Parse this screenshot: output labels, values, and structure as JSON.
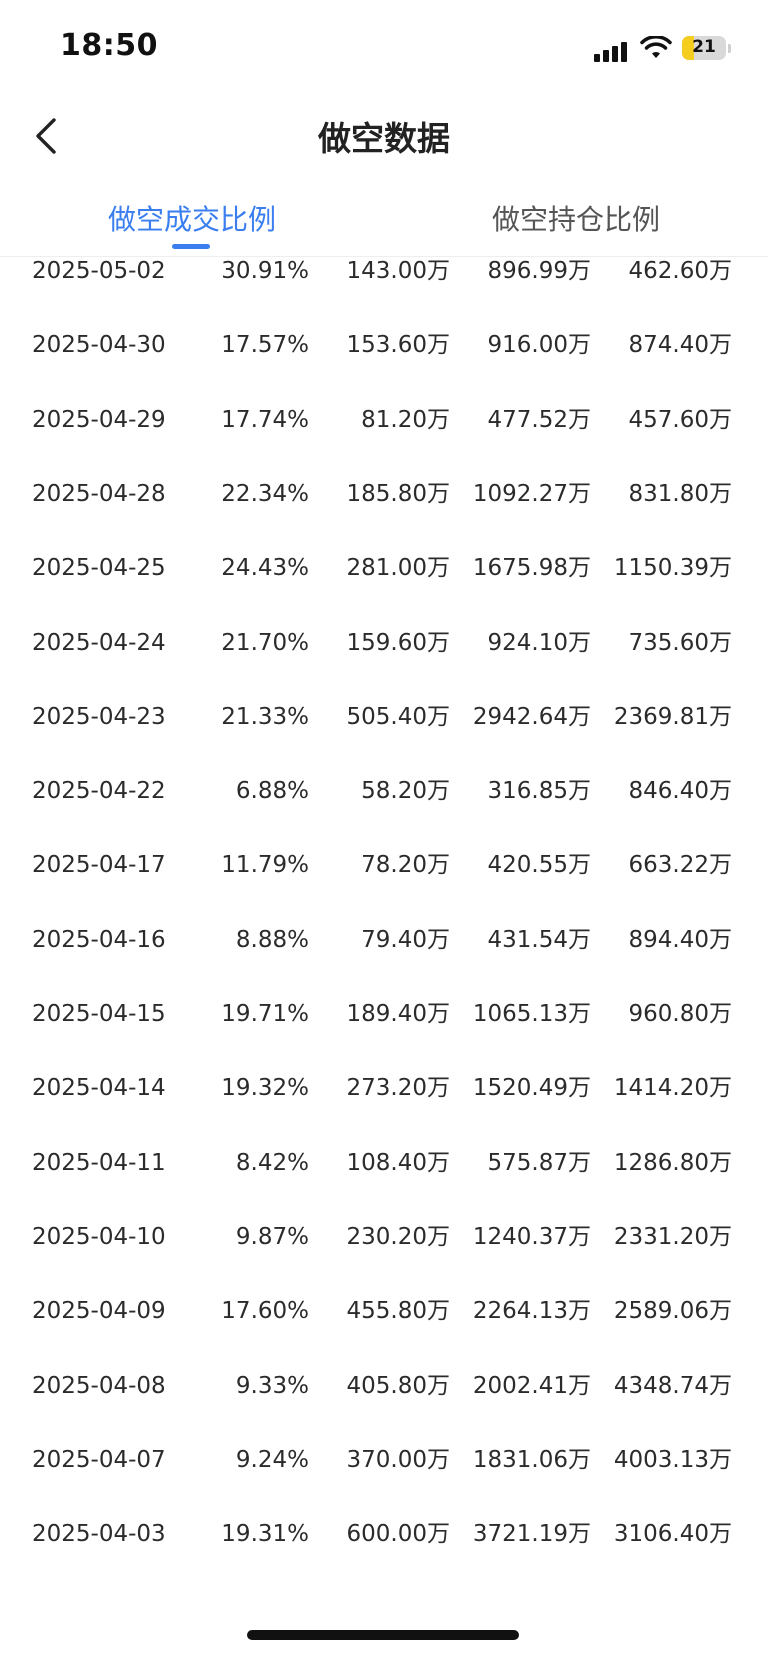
{
  "status_bar": {
    "time": "18:50",
    "battery": "21"
  },
  "nav": {
    "title": "做空数据"
  },
  "tabs": [
    {
      "label": "做空成交比例",
      "active": true
    },
    {
      "label": "做空持仓比例",
      "active": false
    }
  ],
  "colors": {
    "accent": "#3a7ef0",
    "text": "#2b2b2b",
    "battery": "#f5cd1e"
  },
  "rows": [
    {
      "date": "2025-05-02",
      "ratio": "30.91%",
      "v1": "143.00万",
      "v2": "896.99万",
      "v3": "462.60万"
    },
    {
      "date": "2025-04-30",
      "ratio": "17.57%",
      "v1": "153.60万",
      "v2": "916.00万",
      "v3": "874.40万"
    },
    {
      "date": "2025-04-29",
      "ratio": "17.74%",
      "v1": "81.20万",
      "v2": "477.52万",
      "v3": "457.60万"
    },
    {
      "date": "2025-04-28",
      "ratio": "22.34%",
      "v1": "185.80万",
      "v2": "1092.27万",
      "v3": "831.80万"
    },
    {
      "date": "2025-04-25",
      "ratio": "24.43%",
      "v1": "281.00万",
      "v2": "1675.98万",
      "v3": "1150.39万"
    },
    {
      "date": "2025-04-24",
      "ratio": "21.70%",
      "v1": "159.60万",
      "v2": "924.10万",
      "v3": "735.60万"
    },
    {
      "date": "2025-04-23",
      "ratio": "21.33%",
      "v1": "505.40万",
      "v2": "2942.64万",
      "v3": "2369.81万"
    },
    {
      "date": "2025-04-22",
      "ratio": "6.88%",
      "v1": "58.20万",
      "v2": "316.85万",
      "v3": "846.40万"
    },
    {
      "date": "2025-04-17",
      "ratio": "11.79%",
      "v1": "78.20万",
      "v2": "420.55万",
      "v3": "663.22万"
    },
    {
      "date": "2025-04-16",
      "ratio": "8.88%",
      "v1": "79.40万",
      "v2": "431.54万",
      "v3": "894.40万"
    },
    {
      "date": "2025-04-15",
      "ratio": "19.71%",
      "v1": "189.40万",
      "v2": "1065.13万",
      "v3": "960.80万"
    },
    {
      "date": "2025-04-14",
      "ratio": "19.32%",
      "v1": "273.20万",
      "v2": "1520.49万",
      "v3": "1414.20万"
    },
    {
      "date": "2025-04-11",
      "ratio": "8.42%",
      "v1": "108.40万",
      "v2": "575.87万",
      "v3": "1286.80万"
    },
    {
      "date": "2025-04-10",
      "ratio": "9.87%",
      "v1": "230.20万",
      "v2": "1240.37万",
      "v3": "2331.20万"
    },
    {
      "date": "2025-04-09",
      "ratio": "17.60%",
      "v1": "455.80万",
      "v2": "2264.13万",
      "v3": "2589.06万"
    },
    {
      "date": "2025-04-08",
      "ratio": "9.33%",
      "v1": "405.80万",
      "v2": "2002.41万",
      "v3": "4348.74万"
    },
    {
      "date": "2025-04-07",
      "ratio": "9.24%",
      "v1": "370.00万",
      "v2": "1831.06万",
      "v3": "4003.13万"
    },
    {
      "date": "2025-04-03",
      "ratio": "19.31%",
      "v1": "600.00万",
      "v2": "3721.19万",
      "v3": "3106.40万"
    }
  ]
}
